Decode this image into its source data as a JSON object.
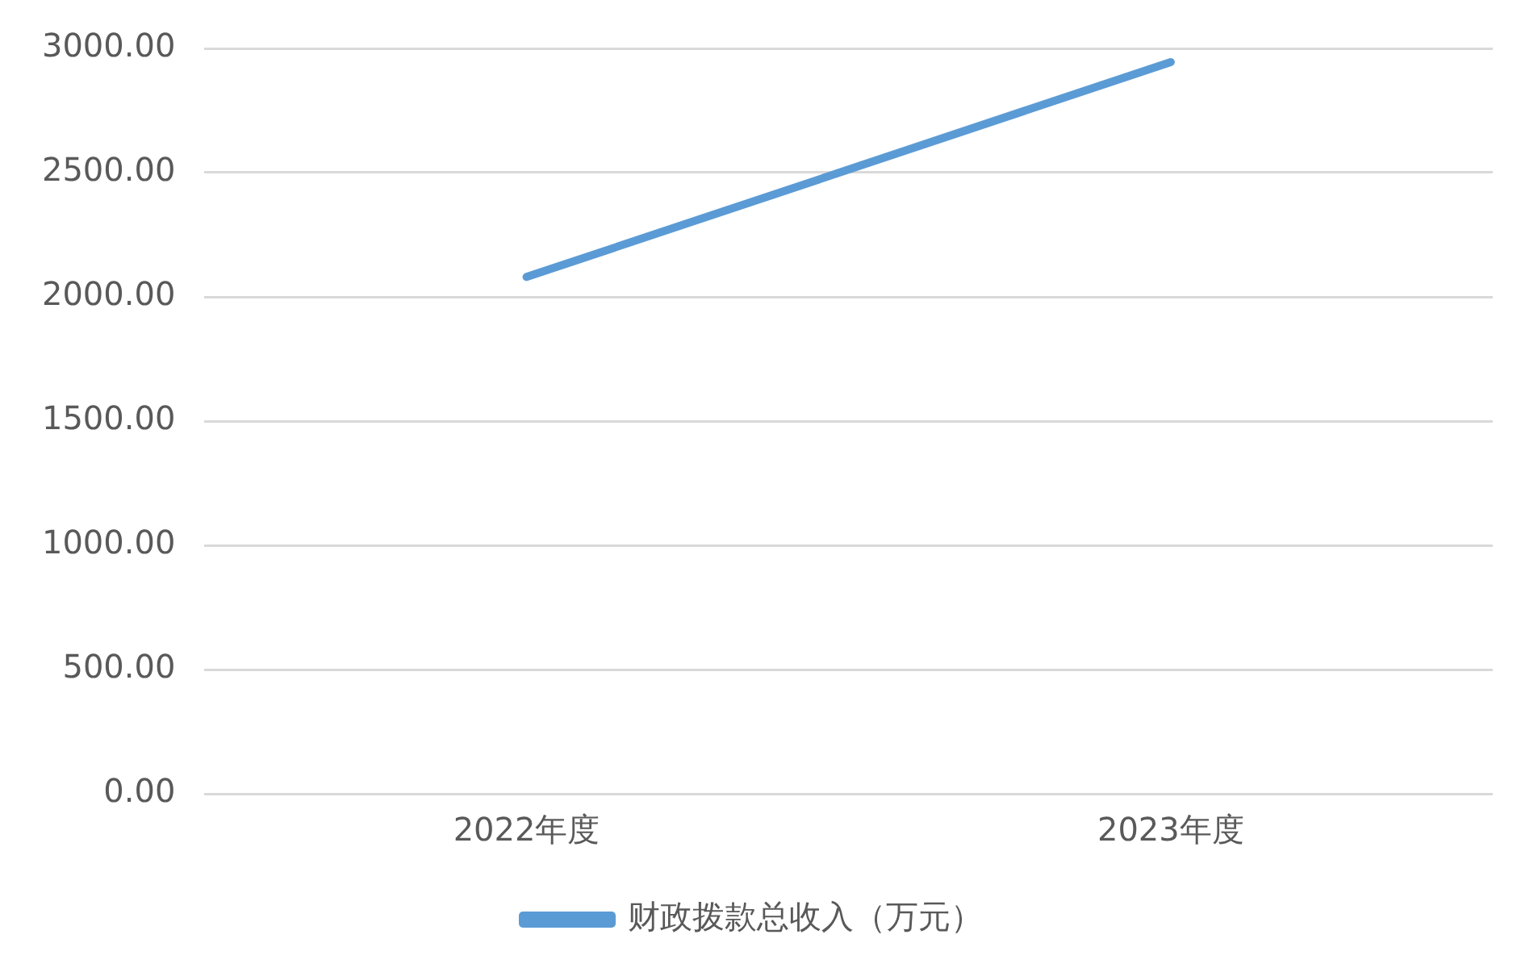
{
  "chart_data": {
    "type": "line",
    "categories": [
      "2022年度",
      "2023年度"
    ],
    "series": [
      {
        "name": "财政拨款总收入（万元）",
        "color": "#5b9bd5",
        "values": [
          2080,
          2945
        ]
      }
    ],
    "ylim": [
      0,
      3000
    ],
    "yticks": [
      {
        "value": 0,
        "label": "0.00"
      },
      {
        "value": 500,
        "label": "500.00"
      },
      {
        "value": 1000,
        "label": "1000.00"
      },
      {
        "value": 1500,
        "label": "1500.00"
      },
      {
        "value": 2000,
        "label": "2000.00"
      },
      {
        "value": 2500,
        "label": "2500.00"
      },
      {
        "value": 3000,
        "label": "3000.00"
      }
    ],
    "grid": "y",
    "legend": "bottom",
    "marker": "none",
    "line_style": "solid"
  }
}
